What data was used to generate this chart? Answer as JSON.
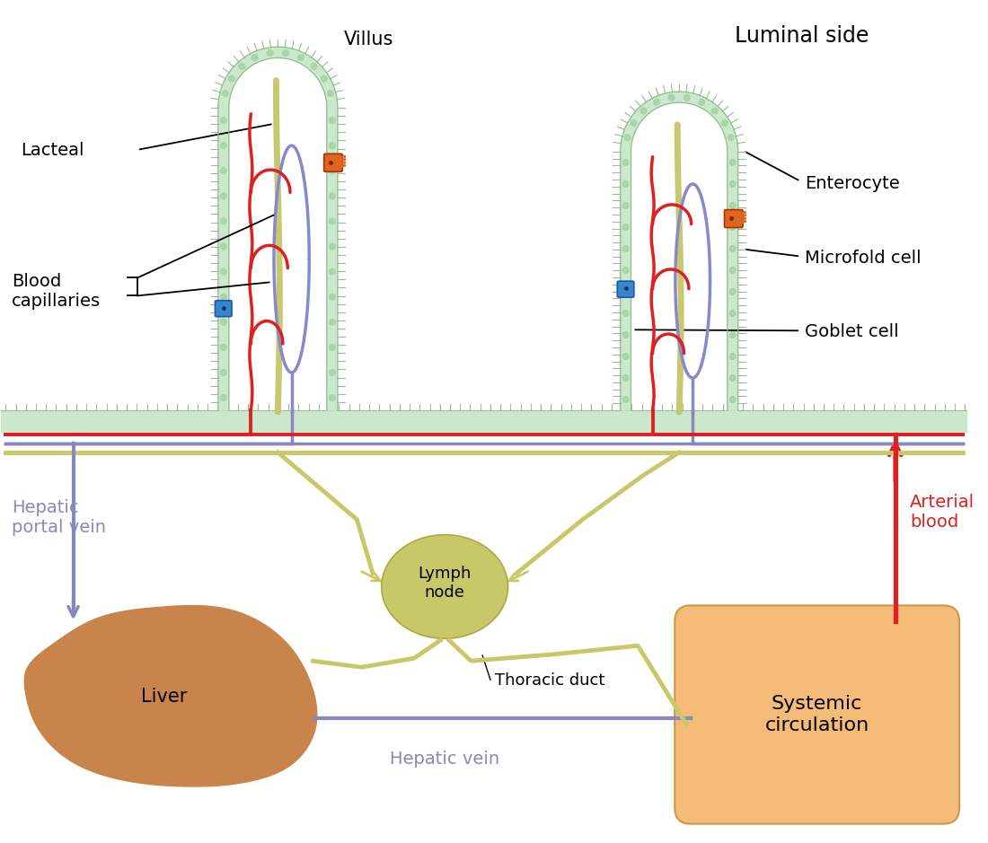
{
  "bg_color": "#ffffff",
  "villus_fill": "#cce8cc",
  "villus_outline": "#88bb88",
  "villus_cell_color": "#aad4aa",
  "villus_spike_color": "#99bb99",
  "lacteal_color": "#c8c870",
  "blood_cap_color": "#dd2020",
  "lymph_cap_color": "#8888cc",
  "goblet_cell_color": "#3388cc",
  "goblet_edge_color": "#2255aa",
  "microfold_cell_color": "#dd6620",
  "microfold_edge_color": "#aa3300",
  "lymph_node_color": "#c8c868",
  "lymph_node_edge": "#aaaa44",
  "liver_color": "#c8844a",
  "systemic_box_color": "#f5bb78",
  "systemic_box_edge": "#cc9940",
  "red_line_color": "#dd2020",
  "purple_line_color": "#8888bb",
  "yellow_line_color": "#c8c868",
  "labels": {
    "luminal_side": "Luminal side",
    "villus": "Villus",
    "lacteal": "Lacteal",
    "blood_capillaries": "Blood\ncapillaries",
    "enterocyte": "Enterocyte",
    "microfold_cell": "Microfold cell",
    "goblet_cell": "Goblet cell",
    "hepatic_portal_vein": "Hepatic\nportal vein",
    "arterial_blood": "Arterial\nblood",
    "liver": "Liver",
    "lymph_node": "Lymph\nnode",
    "thoracic_duct": "Thoracic duct",
    "systemic_circulation": "Systemic\ncirculation",
    "hepatic_vein": "Hepatic vein"
  }
}
